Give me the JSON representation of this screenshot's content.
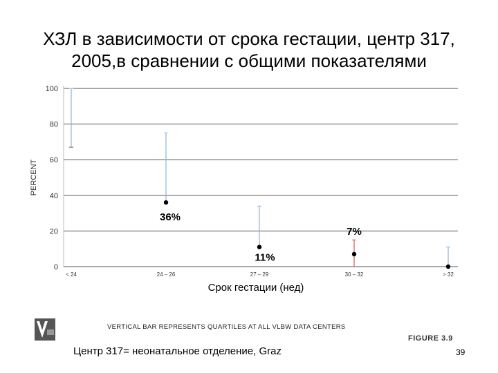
{
  "title_line1": "ХЗЛ в зависимости от срока гестации, центр 317,",
  "title_line2": "2005,в сравнении с общими показателями",
  "chart_data": {
    "type": "scatter",
    "ylabel": "PERCENT",
    "xlabel": "Срок гестации (нед)",
    "ylim": [
      0,
      100
    ],
    "yticks": [
      0,
      20,
      40,
      60,
      80,
      100
    ],
    "grid": true,
    "categories": [
      "< 24",
      "24 – 26",
      "27 – 29",
      "30 – 32",
      "> 32"
    ],
    "center_values": [
      null,
      36,
      11,
      7,
      0
    ],
    "quartile_bars": [
      {
        "category": "< 24",
        "low": 67,
        "high": 100
      },
      {
        "category": "24 – 26",
        "low": 36,
        "high": 75
      },
      {
        "category": "27 – 29",
        "low": 11,
        "high": 34
      },
      {
        "category": "30 – 32",
        "low": 0,
        "high": 15
      },
      {
        "category": "> 32",
        "low": 0,
        "high": 11
      }
    ],
    "annotations": [
      {
        "category": "24 – 26",
        "text": "36%"
      },
      {
        "category": "27 – 29",
        "text": "11%"
      },
      {
        "category": "30 – 32",
        "text": "7%"
      }
    ]
  },
  "caption": "VERTICAL BAR REPRESENTS QUARTILES AT ALL VLBW DATA CENTERS",
  "footer": "Центр 317= неонатальное отделение,  Graz",
  "figure_label": "FIGURE 3.9",
  "page_number": "39",
  "colors": {
    "bar_blue": "#8ab4d8",
    "bar_red": "#d9534f",
    "point": "#000000",
    "grid": "#555555"
  }
}
